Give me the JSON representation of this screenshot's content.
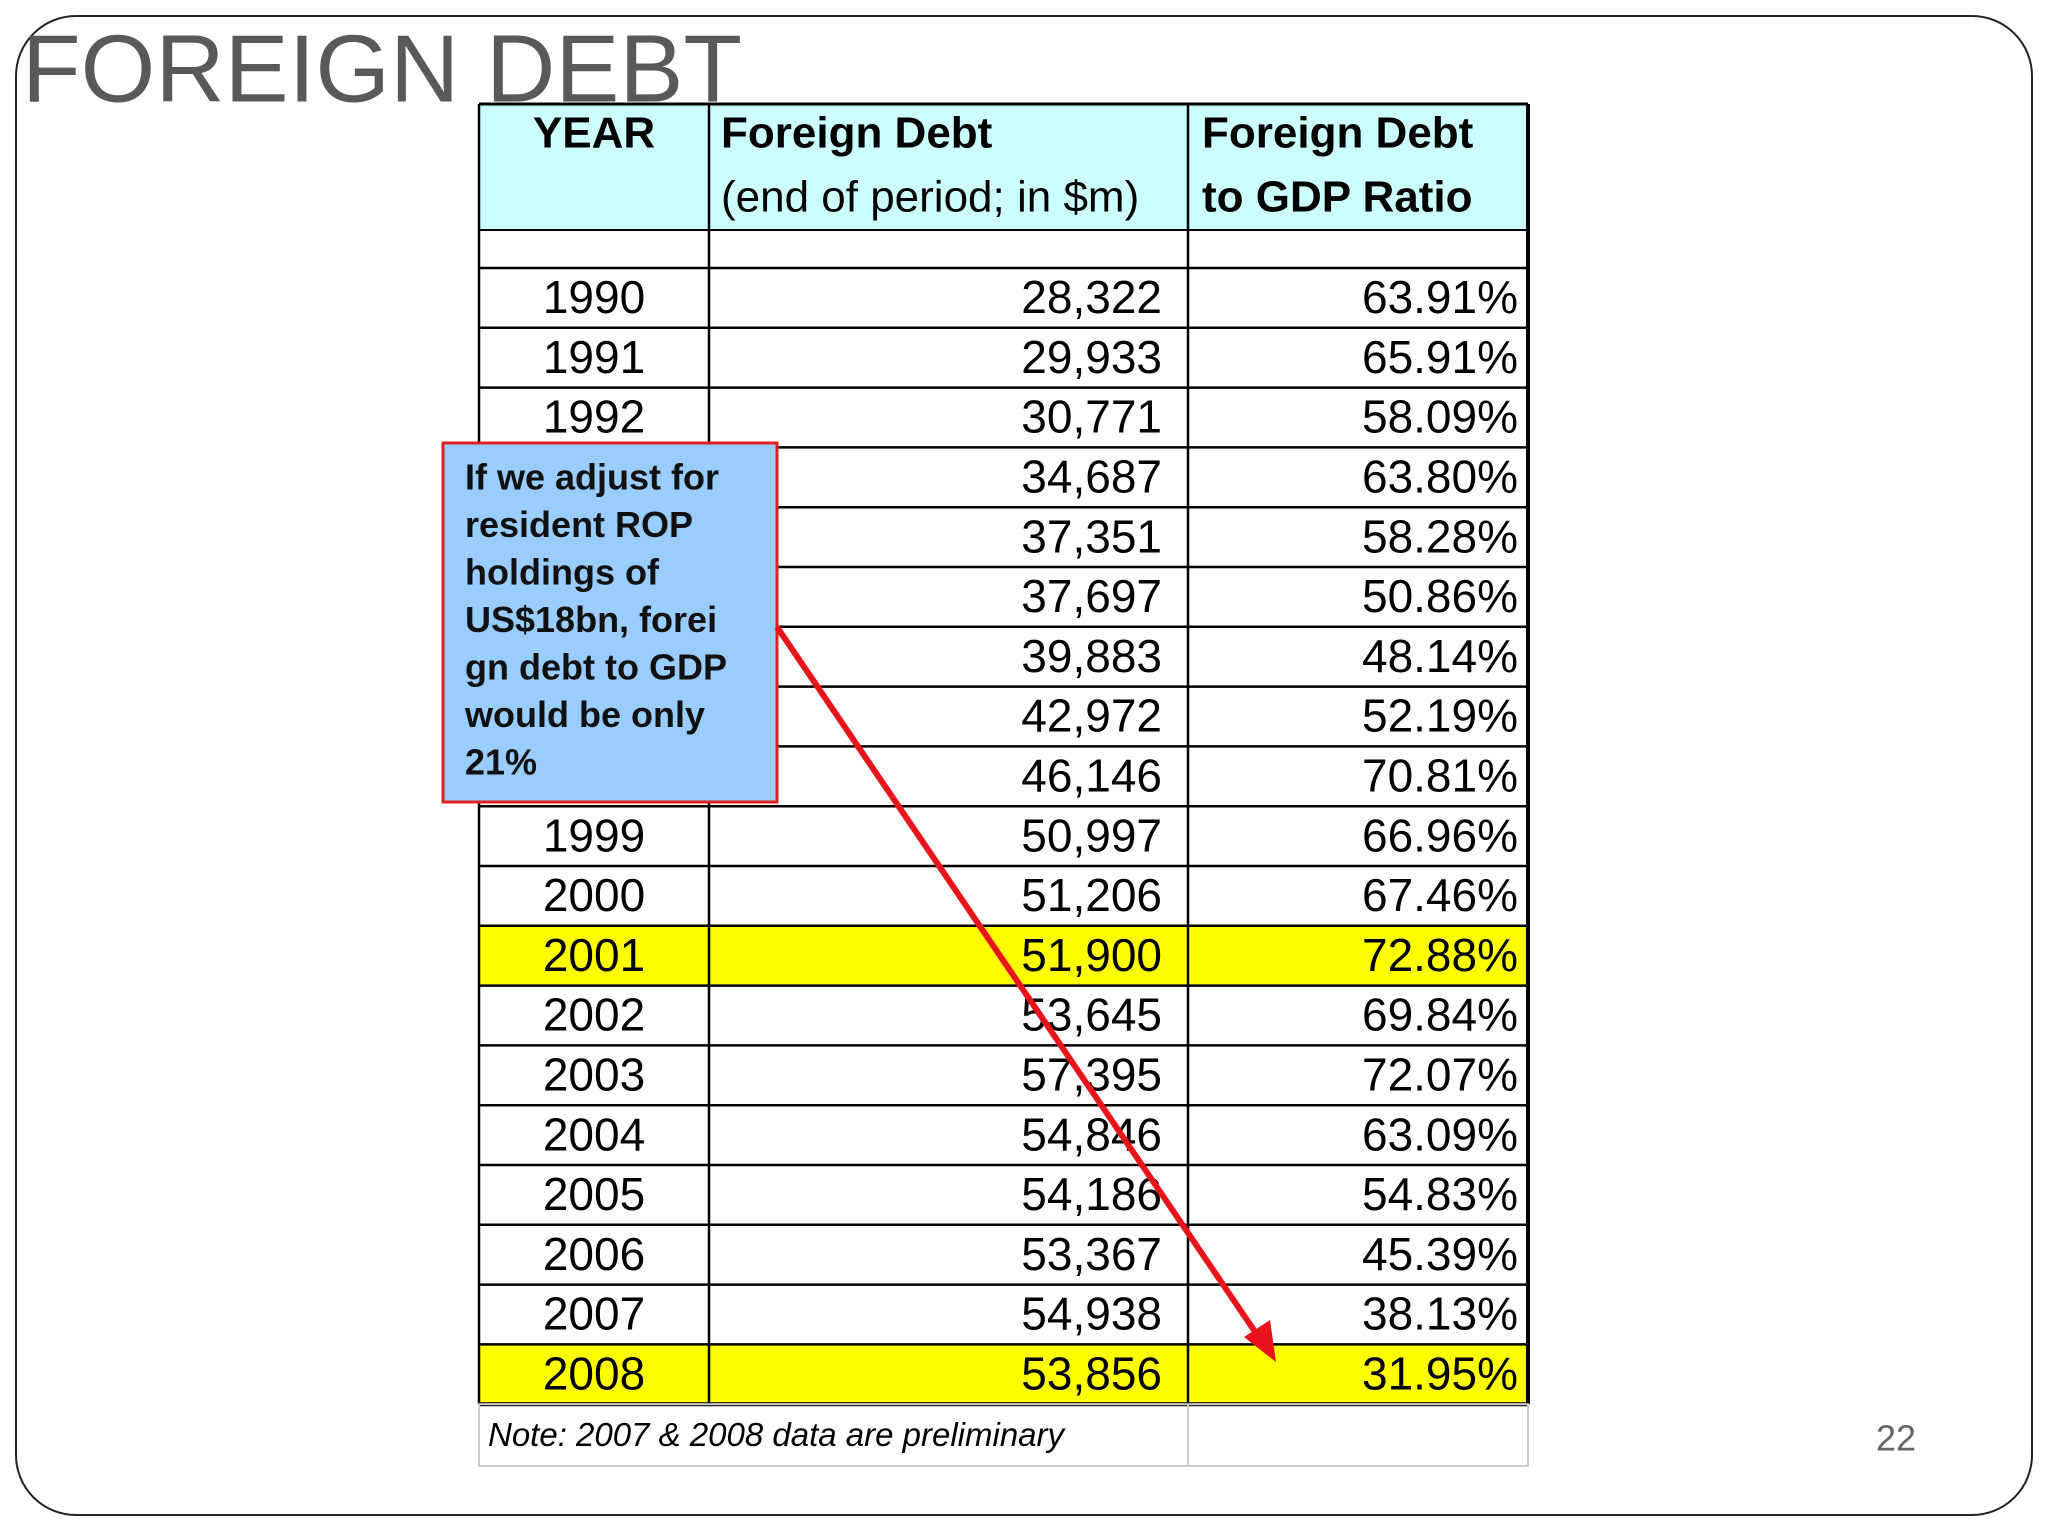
{
  "slide": {
    "title": "FOREIGN DEBT",
    "page_number": "22"
  },
  "table": {
    "header": {
      "year": "YEAR",
      "debt_title": "Foreign Debt",
      "debt_sub": "(end of period; in $m)",
      "ratio_line1": "Foreign Debt",
      "ratio_line2": "to GDP Ratio"
    },
    "rows": [
      [
        "1990",
        "28,322",
        "63.91%"
      ],
      [
        "1991",
        "29,933",
        "65.91%"
      ],
      [
        "1992",
        "30,771",
        "58.09%"
      ],
      [
        null,
        "34,687",
        "63.80%"
      ],
      [
        null,
        "37,351",
        "58.28%"
      ],
      [
        null,
        "37,697",
        "50.86%"
      ],
      [
        null,
        "39,883",
        "48.14%"
      ],
      [
        null,
        "42,972",
        "52.19%"
      ],
      [
        null,
        "46,146",
        "70.81%"
      ],
      [
        "1999",
        "50,997",
        "66.96%"
      ],
      [
        "2000",
        "51,206",
        "67.46%"
      ],
      [
        "2001",
        "51,900",
        "72.88%"
      ],
      [
        "2002",
        "53,645",
        "69.84%"
      ],
      [
        "2003",
        "57,395",
        "72.07%"
      ],
      [
        "2004",
        "54,846",
        "63.09%"
      ],
      [
        "2005",
        "54,186",
        "54.83%"
      ],
      [
        "2006",
        "53,367",
        "45.39%"
      ],
      [
        "2007",
        "54,938",
        "38.13%"
      ],
      [
        "2008",
        "53,856",
        "31.95%"
      ]
    ],
    "highlighted_rows": [
      11,
      18
    ],
    "highlight_color": "#ffff00",
    "header_color": "#ccffff",
    "note": "Note: 2007 & 2008 data are preliminary"
  },
  "callout": {
    "lines": [
      "If we adjust for",
      "resident ROP",
      "holdings of",
      "US$18bn, forei",
      "gn debt to GDP",
      "would be only",
      "21%"
    ],
    "fill": "#99ccff",
    "border": "#e02020"
  }
}
